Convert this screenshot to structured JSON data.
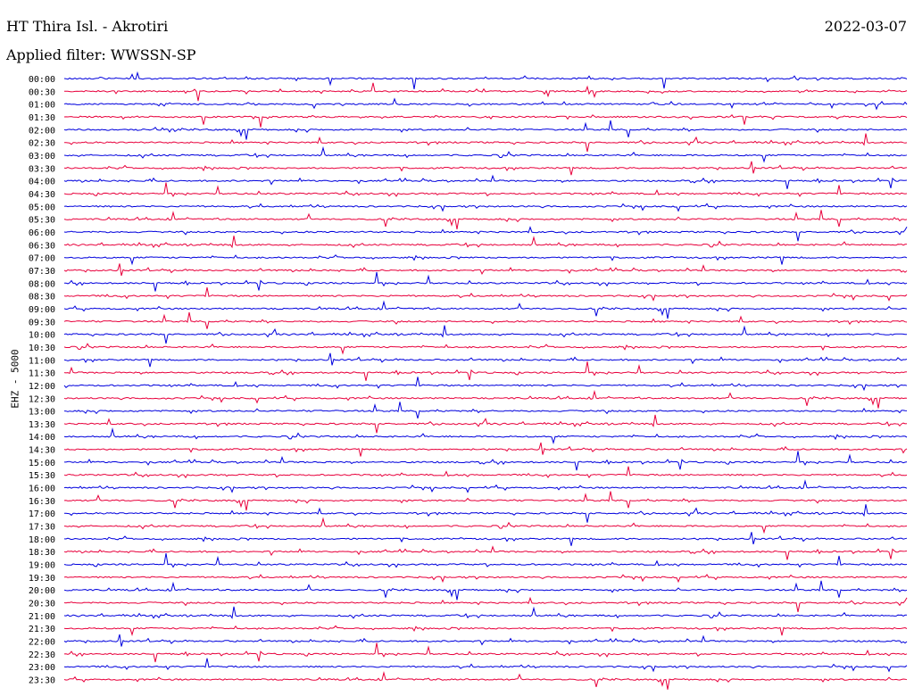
{
  "header": {
    "station": "HT Thira Isl. - Akrotiri",
    "filter": "Applied filter: WWSSN-SP",
    "date": "2022-03-07",
    "channel": "EHZ - 5000"
  },
  "colors": {
    "blue": "#0000dd",
    "red": "#e8003c"
  },
  "chart_data": {
    "type": "line",
    "title": "HT Thira Isl. - Akrotiri",
    "rows": [
      "00:00",
      "00:30",
      "01:00",
      "01:30",
      "02:00",
      "02:30",
      "03:00",
      "03:30",
      "04:00",
      "04:30",
      "05:00",
      "05:30",
      "06:00",
      "06:30",
      "07:00",
      "07:30",
      "08:00",
      "08:30",
      "09:00",
      "09:30",
      "10:00",
      "10:30",
      "11:00",
      "11:30",
      "12:00",
      "12:30",
      "13:00",
      "13:30",
      "14:00",
      "14:30",
      "15:00",
      "15:30",
      "16:00",
      "16:30",
      "17:00",
      "17:30",
      "18:00",
      "18:30",
      "19:00",
      "19:30",
      "20:00",
      "20:30",
      "21:00",
      "21:30",
      "22:00",
      "22:30",
      "23:00",
      "23:30"
    ],
    "row_colors": [
      "blue",
      "red"
    ],
    "grid": false
  }
}
